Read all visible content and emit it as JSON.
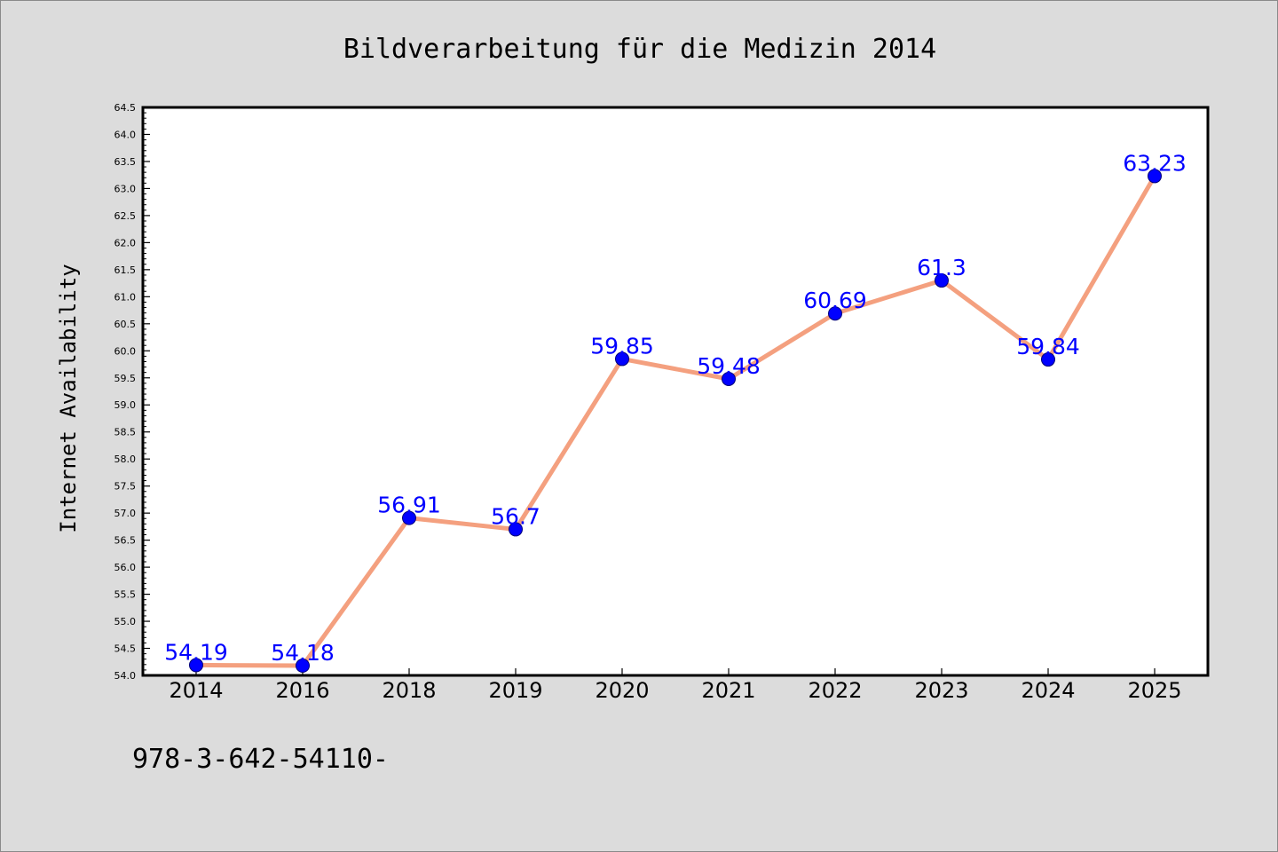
{
  "chart_data": {
    "type": "line",
    "title": "Bildverarbeitung für die Medizin 2014",
    "xlabel": "",
    "ylabel": "Internet Availability",
    "categories": [
      "2014",
      "2016",
      "2018",
      "2019",
      "2020",
      "2021",
      "2022",
      "2023",
      "2024",
      "2025"
    ],
    "series": [
      {
        "values": [
          54.19,
          54.18,
          56.91,
          56.7,
          59.85,
          59.48,
          60.69,
          61.3,
          59.84,
          63.23
        ],
        "labels": [
          "54.19",
          "54.18",
          "56.91",
          "56.7",
          "59.85",
          "59.48",
          "60.69",
          "61.3",
          "59.84",
          "63.23"
        ]
      }
    ],
    "ylim": [
      54.0,
      64.5
    ],
    "yticks": [
      "54.0",
      "54.5",
      "55.0",
      "55.5",
      "56.0",
      "56.5",
      "57.0",
      "57.5",
      "58.0",
      "58.5",
      "59.0",
      "59.5",
      "60.0",
      "60.5",
      "61.0",
      "61.5",
      "62.0",
      "62.5",
      "63.0",
      "63.5",
      "64.0",
      "64.5"
    ],
    "grid": false,
    "legend": "none",
    "colors": {
      "line": "#f4a07f",
      "marker": "#0000ff",
      "data_label": "#0000ff",
      "background": "#dcdcdc",
      "plot_area": "#ffffff"
    }
  },
  "footnote": "978-3-642-54110-"
}
